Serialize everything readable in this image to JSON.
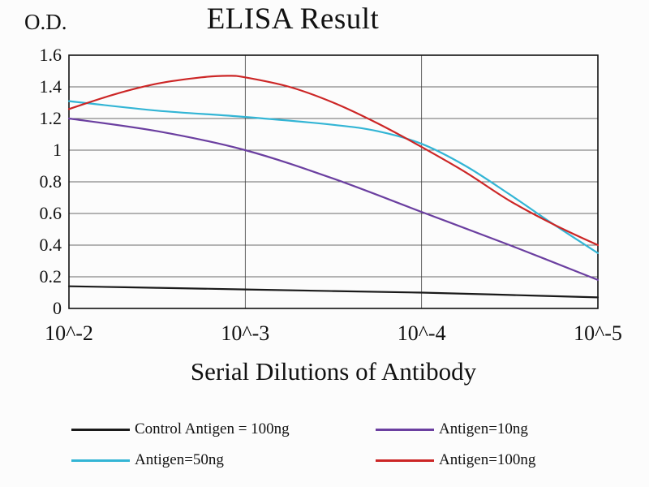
{
  "page": {
    "background": "#fcfcfc"
  },
  "chart_data": {
    "type": "line",
    "title": "ELISA Result",
    "ylabel": "O.D.",
    "xlabel": "Serial Dilutions of Antibody",
    "x_tick_labels": [
      "10^-2",
      "10^-3",
      "10^-4",
      "10^-5"
    ],
    "y_tick_labels": [
      "1.6",
      "1.4",
      "1.2",
      "1",
      "0.8",
      "0.6",
      "0.4",
      "0.2",
      "0"
    ],
    "yticks": [
      1.6,
      1.4,
      1.2,
      1,
      0.8,
      0.6,
      0.4,
      0.2,
      0
    ],
    "ylim": [
      0,
      1.6
    ],
    "xlim": [
      0,
      3
    ],
    "grid": true,
    "legend_position": "below",
    "colors": {
      "grid": "#3a3a3a",
      "border": "#111111"
    },
    "series": [
      {
        "name": "Control Antigen = 100ng",
        "color": "#1a1a1a",
        "x": [
          0,
          0.5,
          1,
          1.5,
          2,
          2.5,
          3
        ],
        "y": [
          0.14,
          0.13,
          0.12,
          0.11,
          0.1,
          0.085,
          0.07
        ]
      },
      {
        "name": "Antigen=10ng",
        "color": "#6b3fa0",
        "x": [
          0,
          0.5,
          1,
          1.5,
          2,
          2.5,
          3
        ],
        "y": [
          1.2,
          1.12,
          1.0,
          0.82,
          0.61,
          0.4,
          0.18
        ]
      },
      {
        "name": "Antigen=50ng",
        "color": "#33b5d5",
        "x": [
          0,
          0.5,
          1,
          1.5,
          1.75,
          2,
          2.25,
          2.5,
          2.75,
          3
        ],
        "y": [
          1.31,
          1.25,
          1.21,
          1.16,
          1.12,
          1.04,
          0.9,
          0.72,
          0.53,
          0.35
        ]
      },
      {
        "name": "Antigen=100ng",
        "color": "#cc2626",
        "x": [
          0,
          0.25,
          0.5,
          0.75,
          0.9,
          1,
          1.25,
          1.5,
          1.75,
          2,
          2.25,
          2.5,
          2.75,
          3
        ],
        "y": [
          1.26,
          1.35,
          1.42,
          1.46,
          1.47,
          1.46,
          1.4,
          1.3,
          1.17,
          1.02,
          0.86,
          0.68,
          0.53,
          0.4
        ]
      }
    ]
  }
}
